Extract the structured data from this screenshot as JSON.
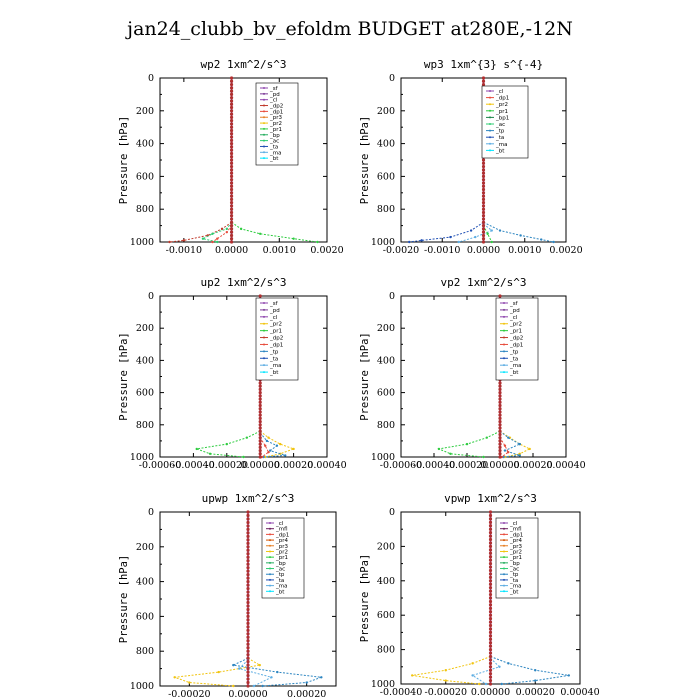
{
  "figure_title": "jan24_clubb_bv_efoldm  BUDGET at280E,-12N",
  "colors": {
    "sf": "#8e44ad",
    "pd": "#7d3c98",
    "cl": "#8e44ad",
    "dp2": "#c0392b",
    "dp1": "#e74c3c",
    "pr3": "#e67e22",
    "pr2": "#f1c40f",
    "pr1": "#2ecc40",
    "bp": "#27ae60",
    "ac": "#2ecc71",
    "ta": "#1f4fb4",
    "tp": "#2e86c1",
    "ma": "#5dade2",
    "bt": "#00e5ff",
    "mfl": "#6c1f5e",
    "pr4": "#d35400",
    "bp1": "#1e8449",
    "dp3": "#922b21",
    "ac2": "#3498db",
    "profile": "#b03030"
  },
  "chart_data": [
    {
      "type": "line",
      "title": "wp2   1xm^2/s^3",
      "ylabel": "Pressure [hPa]",
      "xlim": [
        -0.0015,
        0.002
      ],
      "ylim": [
        1000,
        0
      ],
      "xticks": [
        "-0.0010",
        "0.0000",
        "0.0010",
        "0.0020"
      ],
      "xtick_values": [
        -0.001,
        0,
        0.001,
        0.002
      ],
      "yticks": [
        "0",
        "200",
        "400",
        "600",
        "800",
        "1000"
      ],
      "legend": [
        "_sf",
        "_pd",
        "_cl",
        "_dp2",
        "_dp1",
        "_pr3",
        "_pr2",
        "_pr1",
        "_bp",
        "_ac",
        "_ta",
        "_ma",
        "_bt"
      ],
      "legend_keys": [
        "sf",
        "pd",
        "cl",
        "dp2",
        "dp1",
        "pr3",
        "pr2",
        "pr1",
        "bp",
        "ac",
        "ta",
        "ma",
        "bt"
      ],
      "series": [
        {
          "key": "pr1",
          "p": [
            880,
            920,
            950,
            980,
            1000
          ],
          "x": [
            0,
            0.0002,
            0.0006,
            0.0013,
            0.0018
          ]
        },
        {
          "key": "dp2",
          "p": [
            880,
            920,
            960,
            990,
            1000
          ],
          "x": [
            0,
            -0.0002,
            -0.0005,
            -0.001,
            -0.0013
          ]
        },
        {
          "key": "ac",
          "p": [
            880,
            920,
            950,
            980,
            1000
          ],
          "x": [
            0,
            -0.0001,
            -0.0004,
            -0.0006,
            -0.0003
          ]
        },
        {
          "key": "dp1",
          "p": [
            900,
            940,
            980,
            1000
          ],
          "x": [
            0,
            -0.0001,
            -0.0003,
            -0.0004
          ]
        },
        {
          "key": "pd",
          "p": [
            0,
            1000
          ],
          "x": [
            0,
            0
          ]
        }
      ]
    },
    {
      "type": "line",
      "title": "wp3   1xm^{3} s^{-4}",
      "ylabel": "Pressure [hPa]",
      "xlim": [
        -0.002,
        0.002
      ],
      "ylim": [
        1000,
        0
      ],
      "xticks": [
        "-0.0020",
        "-0.0010",
        "0.0000",
        "0.0010",
        "0.0020"
      ],
      "xtick_values": [
        -0.002,
        -0.001,
        0,
        0.001,
        0.002
      ],
      "yticks": [
        "0",
        "200",
        "400",
        "600",
        "800",
        "1000"
      ],
      "legend": [
        "_cl",
        "_dp1",
        "_pr2",
        "_pr1",
        "_bp1",
        "_ac",
        "_tp",
        "_ta",
        "_ma",
        "_bt"
      ],
      "legend_keys": [
        "cl",
        "dp1",
        "pr2",
        "pr1",
        "bp1",
        "ac",
        "tp",
        "ta",
        "ma",
        "bt"
      ],
      "series": [
        {
          "key": "ta",
          "p": [
            880,
            930,
            970,
            990,
            1000
          ],
          "x": [
            0,
            -0.0003,
            -0.0008,
            -0.0015,
            -0.0018
          ]
        },
        {
          "key": "tp",
          "p": [
            880,
            930,
            960,
            985,
            1000
          ],
          "x": [
            0,
            0.0004,
            0.0009,
            0.0014,
            0.0017
          ]
        },
        {
          "key": "ma",
          "p": [
            890,
            930,
            970,
            1000
          ],
          "x": [
            0,
            0.0002,
            -0.0002,
            -0.0006
          ]
        },
        {
          "key": "pr1",
          "p": [
            900,
            950,
            1000
          ],
          "x": [
            0,
            0.0001,
            0.0002
          ]
        },
        {
          "key": "cl",
          "p": [
            0,
            1000
          ],
          "x": [
            0,
            0
          ]
        }
      ]
    },
    {
      "type": "line",
      "title": "up2   1xm^2/s^3",
      "ylabel": "Pressure [hPa]",
      "xlim": [
        -0.0006,
        0.0004
      ],
      "ylim": [
        1000,
        0
      ],
      "xticks": [
        "-0.00060",
        "-0.00040",
        "-0.00020",
        "0.00000",
        "0.00020",
        "0.00040"
      ],
      "xtick_values": [
        -0.0006,
        -0.0004,
        -0.0002,
        0,
        0.0002,
        0.0004
      ],
      "yticks": [
        "0",
        "200",
        "400",
        "600",
        "800",
        "1000"
      ],
      "legend": [
        "_sf",
        "_pd",
        "_cl",
        "_pr2",
        "_pr1",
        "_dp2",
        "_dp1",
        "_tp",
        "_ta",
        "_ma",
        "_bt"
      ],
      "legend_keys": [
        "sf",
        "pd",
        "cl",
        "pr2",
        "pr1",
        "dp2",
        "dp1",
        "tp",
        "ta",
        "ma",
        "bt"
      ],
      "series": [
        {
          "key": "pr1",
          "p": [
            840,
            880,
            920,
            950,
            980,
            1000
          ],
          "x": [
            0,
            -8e-05,
            -0.0002,
            -0.00038,
            -0.0003,
            -0.0001
          ]
        },
        {
          "key": "pr2",
          "p": [
            840,
            880,
            920,
            950,
            980,
            1000
          ],
          "x": [
            0,
            5e-05,
            0.00012,
            0.0002,
            0.00012,
            3e-05
          ]
        },
        {
          "key": "tp",
          "p": [
            850,
            900,
            930,
            960,
            990,
            1000
          ],
          "x": [
            0,
            4e-05,
            0.0001,
            6e-05,
            0.00015,
            2e-05
          ]
        },
        {
          "key": "dp1",
          "p": [
            880,
            930,
            970,
            1000
          ],
          "x": [
            0,
            3e-05,
            5e-05,
            1e-05
          ]
        },
        {
          "key": "cl",
          "p": [
            0,
            1000
          ],
          "x": [
            0,
            0
          ]
        }
      ]
    },
    {
      "type": "line",
      "title": "vp2   1xm^2/s^3",
      "ylabel": "Pressure [hPa]",
      "xlim": [
        -0.0006,
        0.0004
      ],
      "ylim": [
        1000,
        0
      ],
      "xticks": [
        "-0.00060",
        "-0.00040",
        "-0.00020",
        "0.00000",
        "0.00020",
        "0.00040"
      ],
      "xtick_values": [
        -0.0006,
        -0.0004,
        -0.0002,
        0,
        0.0002,
        0.0004
      ],
      "yticks": [
        "0",
        "200",
        "400",
        "600",
        "800",
        "1000"
      ],
      "legend": [
        "_sf",
        "_pd",
        "_cl",
        "_pr2",
        "_pr1",
        "_dp2",
        "_dp1",
        "_tp",
        "_ta",
        "_ma",
        "_bt"
      ],
      "legend_keys": [
        "sf",
        "pd",
        "cl",
        "pr2",
        "pr1",
        "dp2",
        "dp1",
        "tp",
        "ta",
        "ma",
        "bt"
      ],
      "series": [
        {
          "key": "pr1",
          "p": [
            840,
            880,
            920,
            950,
            980,
            1000
          ],
          "x": [
            0,
            -8e-05,
            -0.0002,
            -0.00037,
            -0.0003,
            -0.0001
          ]
        },
        {
          "key": "pr2",
          "p": [
            840,
            880,
            920,
            950,
            980,
            1000
          ],
          "x": [
            0,
            6e-05,
            0.00012,
            0.00018,
            0.00012,
            3e-05
          ]
        },
        {
          "key": "tp",
          "p": [
            840,
            880,
            920,
            960,
            990,
            1000
          ],
          "x": [
            0,
            5e-05,
            0.00012,
            3e-05,
            0.00012,
            2e-05
          ]
        },
        {
          "key": "dp1",
          "p": [
            880,
            930,
            970,
            1000
          ],
          "x": [
            0,
            3e-05,
            5e-05,
            1e-05
          ]
        },
        {
          "key": "cl",
          "p": [
            0,
            1000
          ],
          "x": [
            0,
            0
          ]
        }
      ]
    },
    {
      "type": "line",
      "title": "upwp   1xm^2/s^3",
      "ylabel": "Pressure [hPa]",
      "xlim": [
        -0.0003,
        0.0003
      ],
      "ylim": [
        1000,
        0
      ],
      "xticks": [
        "-0.00020",
        "0.00000",
        "0.00020"
      ],
      "xtick_values": [
        -0.0002,
        0,
        0.0002
      ],
      "yticks": [
        "0",
        "200",
        "400",
        "600",
        "800",
        "1000"
      ],
      "legend": [
        "_cl",
        "_mfl",
        "_dp1",
        "_pr4",
        "_pr3",
        "_pr2",
        "_pr1",
        "_bp",
        "_ac",
        "_tp",
        "_ta",
        "_ma",
        "_bt"
      ],
      "legend_keys": [
        "cl",
        "mfl",
        "dp1",
        "pr4",
        "pr3",
        "pr2",
        "pr1",
        "bp",
        "ac",
        "tp",
        "ta",
        "ma",
        "bt"
      ],
      "series": [
        {
          "key": "tp",
          "p": [
            840,
            880,
            920,
            950,
            980,
            1000
          ],
          "x": [
            0,
            -5e-05,
            0.0001,
            0.00025,
            0.0002,
            5e-05
          ]
        },
        {
          "key": "pr2",
          "p": [
            840,
            880,
            920,
            950,
            980,
            1000
          ],
          "x": [
            0,
            4e-05,
            -0.0001,
            -0.00025,
            -0.0002,
            -5e-05
          ]
        },
        {
          "key": "ma",
          "p": [
            850,
            900,
            950,
            1000
          ],
          "x": [
            0,
            -3e-05,
            8e-05,
            2e-05
          ]
        },
        {
          "key": "cl",
          "p": [
            0,
            1000
          ],
          "x": [
            0,
            0
          ]
        }
      ]
    },
    {
      "type": "line",
      "title": "vpwp   1xm^2/s^3",
      "ylabel": "Pressure [hPa]",
      "xlim": [
        -0.0004,
        0.0004
      ],
      "ylim": [
        1000,
        0
      ],
      "xticks": [
        "-0.00040",
        "-0.00020",
        "0.00000",
        "0.00020",
        "0.00040"
      ],
      "xtick_values": [
        -0.0004,
        -0.0002,
        0,
        0.0002,
        0.0004
      ],
      "yticks": [
        "0",
        "200",
        "400",
        "600",
        "800",
        "1000"
      ],
      "legend": [
        "_cl",
        "_mfl",
        "_dp1",
        "_pr4",
        "_pr3",
        "_pr2",
        "_pr1",
        "_bp",
        "_ac",
        "_tp",
        "_ta",
        "_ma",
        "_bt"
      ],
      "legend_keys": [
        "cl",
        "mfl",
        "dp1",
        "pr4",
        "pr3",
        "pr2",
        "pr1",
        "bp",
        "ac",
        "tp",
        "ta",
        "ma",
        "bt"
      ],
      "series": [
        {
          "key": "tp",
          "p": [
            840,
            880,
            920,
            950,
            980,
            1000
          ],
          "x": [
            0,
            8e-05,
            0.0002,
            0.00035,
            0.0002,
            5e-05
          ]
        },
        {
          "key": "pr2",
          "p": [
            840,
            880,
            920,
            950,
            980,
            1000
          ],
          "x": [
            0,
            -8e-05,
            -0.0002,
            -0.00035,
            -0.0002,
            -5e-05
          ]
        },
        {
          "key": "ma",
          "p": [
            850,
            900,
            950,
            1000
          ],
          "x": [
            0,
            4e-05,
            -8e-05,
            -2e-05
          ]
        },
        {
          "key": "cl",
          "p": [
            0,
            1000
          ],
          "x": [
            0,
            0
          ]
        }
      ]
    }
  ]
}
